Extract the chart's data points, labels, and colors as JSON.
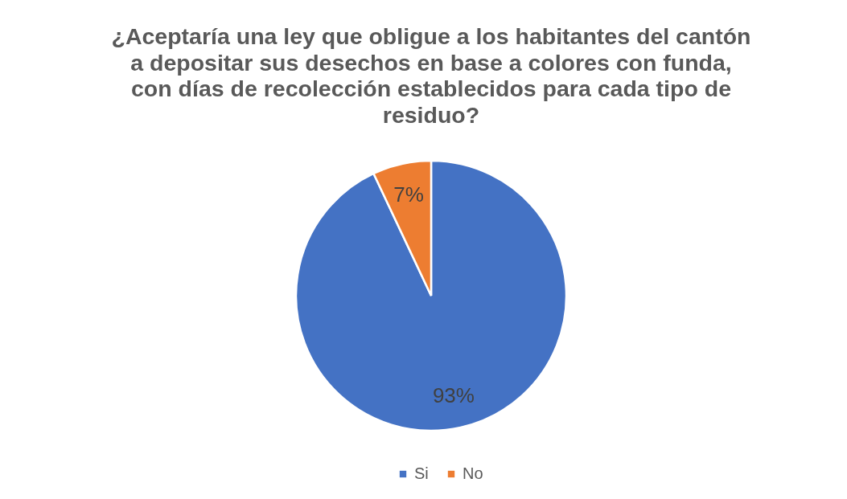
{
  "chart_data": {
    "type": "pie",
    "title": "¿Aceptaría una ley que obligue a los habitantes del cantón\na depositar sus desechos en base a colores con funda,\ncon días de recolección establecidos para cada tipo de\nresiduo?",
    "categories": [
      "Si",
      "No"
    ],
    "values": [
      93,
      7
    ],
    "colors": [
      "#4472c4",
      "#ed7d31"
    ],
    "value_labels": [
      "93%",
      "7%"
    ],
    "legend": "bottom"
  }
}
